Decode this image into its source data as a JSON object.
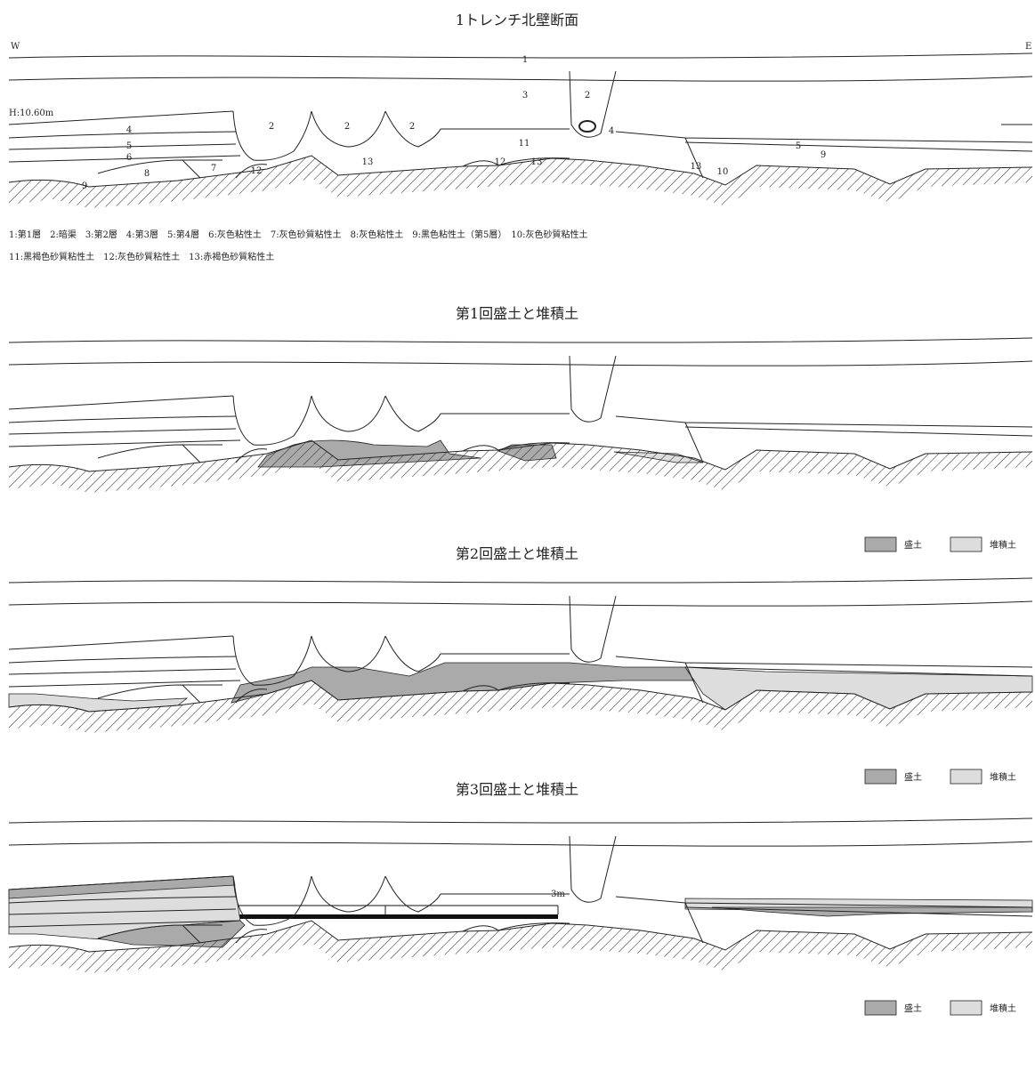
{
  "title": "1トレンチ北壁断面",
  "west": "W",
  "east": "E",
  "height": "H:10.60m",
  "layer_labels": [
    "1",
    "3",
    "2",
    "2",
    "2",
    "2",
    "4",
    "4",
    "5",
    "5",
    "6",
    "7",
    "8",
    "9",
    "9",
    "10",
    "11",
    "12",
    "12",
    "13",
    "13",
    "13"
  ],
  "legend_lines": [
    "1:第1層　2:暗渠　3:第2層　4:第3層　5:第4層　6:灰色粘性土　7:灰色砂質粘性土　8:灰色粘性土　9:黒色粘性土（第5層）　10:灰色砂質粘性土",
    "11:黒褐色砂質粘性土　12:灰色砂質粘性土　13:赤褐色砂質粘性土"
  ],
  "phases": [
    {
      "title": "第1回盛土と堆積土",
      "legend": [
        "盛土",
        "堆積土"
      ]
    },
    {
      "title": "第2回盛土と堆積土",
      "legend": [
        "盛土",
        "堆積土"
      ]
    },
    {
      "title": "第3回盛土と堆積土",
      "legend": [
        "盛土",
        "堆積土"
      ]
    }
  ],
  "scale": {
    "start": "0",
    "end": "3m"
  }
}
